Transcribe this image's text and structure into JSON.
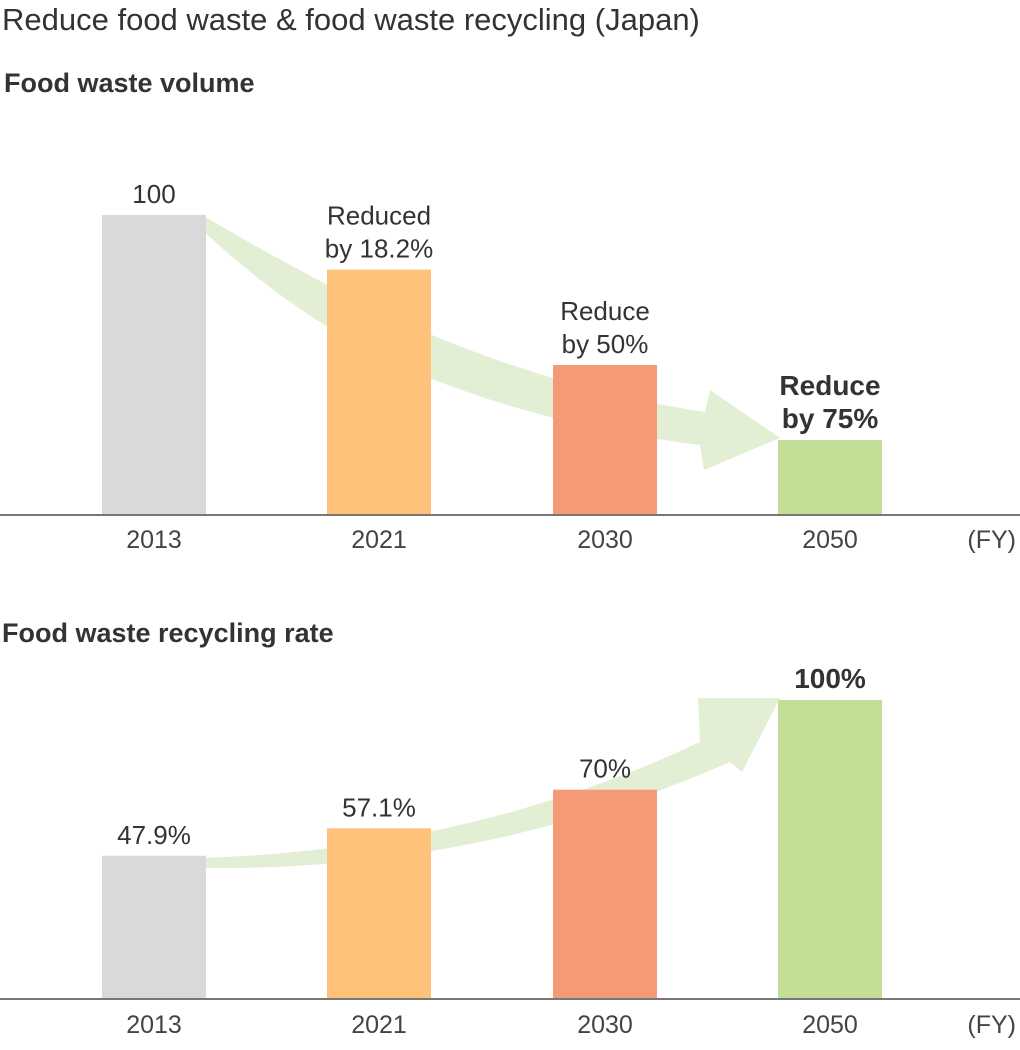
{
  "title": "Reduce food waste & food waste recycling (Japan)",
  "colors": {
    "axis": "#777777",
    "arrow": "#e2efd4",
    "text": "#333333"
  },
  "chart_data": [
    {
      "type": "bar",
      "title": "Food waste volume",
      "categories": [
        "2013",
        "2021",
        "2030",
        "2050"
      ],
      "values": [
        100,
        81.8,
        50,
        25
      ],
      "ylim": [
        0,
        100
      ],
      "unit_label": "(FY)",
      "bar_colors": [
        "#d9d9d9",
        "#ffc27a",
        "#f59a76",
        "#c3df97"
      ],
      "data_labels": [
        [
          "100"
        ],
        [
          "Reduced",
          "by 18.2%"
        ],
        [
          "Reduce",
          "by 50%"
        ],
        [
          "Reduce",
          "by 75%"
        ]
      ],
      "label_bold": [
        false,
        false,
        false,
        true
      ],
      "trend_arrow": "downward"
    },
    {
      "type": "bar",
      "title": "Food waste recycling rate",
      "categories": [
        "2013",
        "2021",
        "2030",
        "2050"
      ],
      "values": [
        47.9,
        57.1,
        70,
        100
      ],
      "ylim": [
        0,
        100
      ],
      "unit_label": "(FY)",
      "bar_colors": [
        "#d9d9d9",
        "#ffc27a",
        "#f59a76",
        "#c3df97"
      ],
      "data_labels": [
        [
          "47.9%"
        ],
        [
          "57.1%"
        ],
        [
          "70%"
        ],
        [
          "100%"
        ]
      ],
      "label_bold": [
        false,
        false,
        false,
        true
      ],
      "trend_arrow": "upward"
    }
  ]
}
